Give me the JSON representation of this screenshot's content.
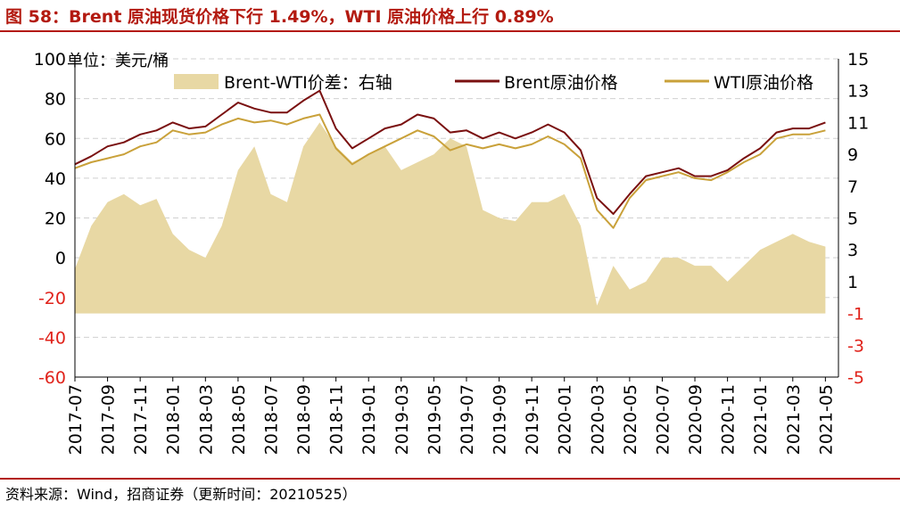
{
  "title": "图 58：Brent 原油现货价格下行 1.49%，WTI 原油价格上行 0.89%",
  "source": "资料来源：Wind，招商证券（更新时间：20210525）",
  "colors": {
    "brent": "#7a1010",
    "wti": "#c9a13a",
    "spread": "#e8d8a4",
    "accent": "#b31a10",
    "negative": "#e0221a"
  },
  "chart_data": {
    "type": "line",
    "unit_label": "单位：美元/桶",
    "x_ticks": [
      "2017-07",
      "2017-09",
      "2017-11",
      "2018-01",
      "2018-03",
      "2018-05",
      "2018-07",
      "2018-09",
      "2018-11",
      "2019-01",
      "2019-03",
      "2019-05",
      "2019-07",
      "2019-09",
      "2019-11",
      "2020-01",
      "2020-03",
      "2020-05",
      "2020-07",
      "2020-09",
      "2020-11",
      "2021-01",
      "2021-03",
      "2021-05"
    ],
    "y_left": {
      "range": [
        -60,
        100
      ],
      "ticks": [
        100,
        80,
        60,
        40,
        20,
        0,
        -20,
        -40,
        -60
      ],
      "label": "单位：美元/桶"
    },
    "y_right": {
      "range": [
        -5,
        15
      ],
      "ticks": [
        15,
        13,
        11,
        9,
        7,
        5,
        3,
        1,
        -1,
        -3,
        -5
      ],
      "label": "右轴"
    },
    "grid": "horizontal-dashed",
    "legend_position": "top",
    "series": [
      {
        "name": "Brent-WTI价差：右轴",
        "kind": "area",
        "axis": "right",
        "x": [
          "2017-07",
          "2017-08",
          "2017-09",
          "2017-10",
          "2017-11",
          "2017-12",
          "2018-01",
          "2018-02",
          "2018-03",
          "2018-04",
          "2018-05",
          "2018-06",
          "2018-07",
          "2018-08",
          "2018-09",
          "2018-10",
          "2018-11",
          "2018-12",
          "2019-01",
          "2019-02",
          "2019-03",
          "2019-04",
          "2019-05",
          "2019-06",
          "2019-07",
          "2019-08",
          "2019-09",
          "2019-10",
          "2019-11",
          "2019-12",
          "2020-01",
          "2020-02",
          "2020-03",
          "2020-04",
          "2020-05",
          "2020-06",
          "2020-07",
          "2020-08",
          "2020-09",
          "2020-10",
          "2020-11",
          "2020-12",
          "2021-01",
          "2021-02",
          "2021-03",
          "2021-04",
          "2021-05"
        ],
        "values": [
          1.8,
          4.5,
          6.0,
          6.5,
          5.8,
          6.2,
          4.0,
          3.0,
          2.5,
          4.5,
          8.0,
          9.5,
          6.5,
          6.0,
          9.5,
          11.0,
          9.5,
          8.5,
          9.0,
          9.5,
          8.0,
          8.5,
          9.0,
          10.0,
          9.5,
          5.5,
          5.0,
          4.8,
          6.0,
          6.0,
          6.5,
          4.5,
          -0.5,
          2.0,
          0.5,
          1.0,
          2.5,
          2.5,
          2.0,
          2.0,
          1.0,
          2.0,
          3.0,
          3.5,
          4.0,
          3.5,
          3.2
        ]
      },
      {
        "name": "Brent原油价格",
        "kind": "line",
        "axis": "left",
        "x": [
          "2017-07",
          "2017-08",
          "2017-09",
          "2017-10",
          "2017-11",
          "2017-12",
          "2018-01",
          "2018-02",
          "2018-03",
          "2018-04",
          "2018-05",
          "2018-06",
          "2018-07",
          "2018-08",
          "2018-09",
          "2018-10",
          "2018-11",
          "2018-12",
          "2019-01",
          "2019-02",
          "2019-03",
          "2019-04",
          "2019-05",
          "2019-06",
          "2019-07",
          "2019-08",
          "2019-09",
          "2019-10",
          "2019-11",
          "2019-12",
          "2020-01",
          "2020-02",
          "2020-03",
          "2020-04",
          "2020-05",
          "2020-06",
          "2020-07",
          "2020-08",
          "2020-09",
          "2020-10",
          "2020-11",
          "2020-12",
          "2021-01",
          "2021-02",
          "2021-03",
          "2021-04",
          "2021-05"
        ],
        "values": [
          47,
          51,
          56,
          58,
          62,
          64,
          68,
          65,
          66,
          72,
          78,
          75,
          73,
          73,
          79,
          84,
          65,
          55,
          60,
          65,
          67,
          72,
          70,
          63,
          64,
          60,
          63,
          60,
          63,
          67,
          63,
          54,
          30,
          22,
          32,
          41,
          43,
          45,
          41,
          41,
          44,
          50,
          55,
          63,
          65,
          65,
          68
        ]
      },
      {
        "name": "WTI原油价格",
        "kind": "line",
        "axis": "left",
        "x": [
          "2017-07",
          "2017-08",
          "2017-09",
          "2017-10",
          "2017-11",
          "2017-12",
          "2018-01",
          "2018-02",
          "2018-03",
          "2018-04",
          "2018-05",
          "2018-06",
          "2018-07",
          "2018-08",
          "2018-09",
          "2018-10",
          "2018-11",
          "2018-12",
          "2019-01",
          "2019-02",
          "2019-03",
          "2019-04",
          "2019-05",
          "2019-06",
          "2019-07",
          "2019-08",
          "2019-09",
          "2019-10",
          "2019-11",
          "2019-12",
          "2020-01",
          "2020-02",
          "2020-03",
          "2020-04",
          "2020-05",
          "2020-06",
          "2020-07",
          "2020-08",
          "2020-09",
          "2020-10",
          "2020-11",
          "2020-12",
          "2021-01",
          "2021-02",
          "2021-03",
          "2021-04",
          "2021-05"
        ],
        "values": [
          45,
          48,
          50,
          52,
          56,
          58,
          64,
          62,
          63,
          67,
          70,
          68,
          69,
          67,
          70,
          72,
          55,
          47,
          52,
          56,
          60,
          64,
          61,
          54,
          57,
          55,
          57,
          55,
          57,
          61,
          57,
          50,
          24,
          15,
          30,
          39,
          41,
          43,
          40,
          39,
          43,
          48,
          52,
          60,
          62,
          62,
          64
        ]
      }
    ]
  }
}
